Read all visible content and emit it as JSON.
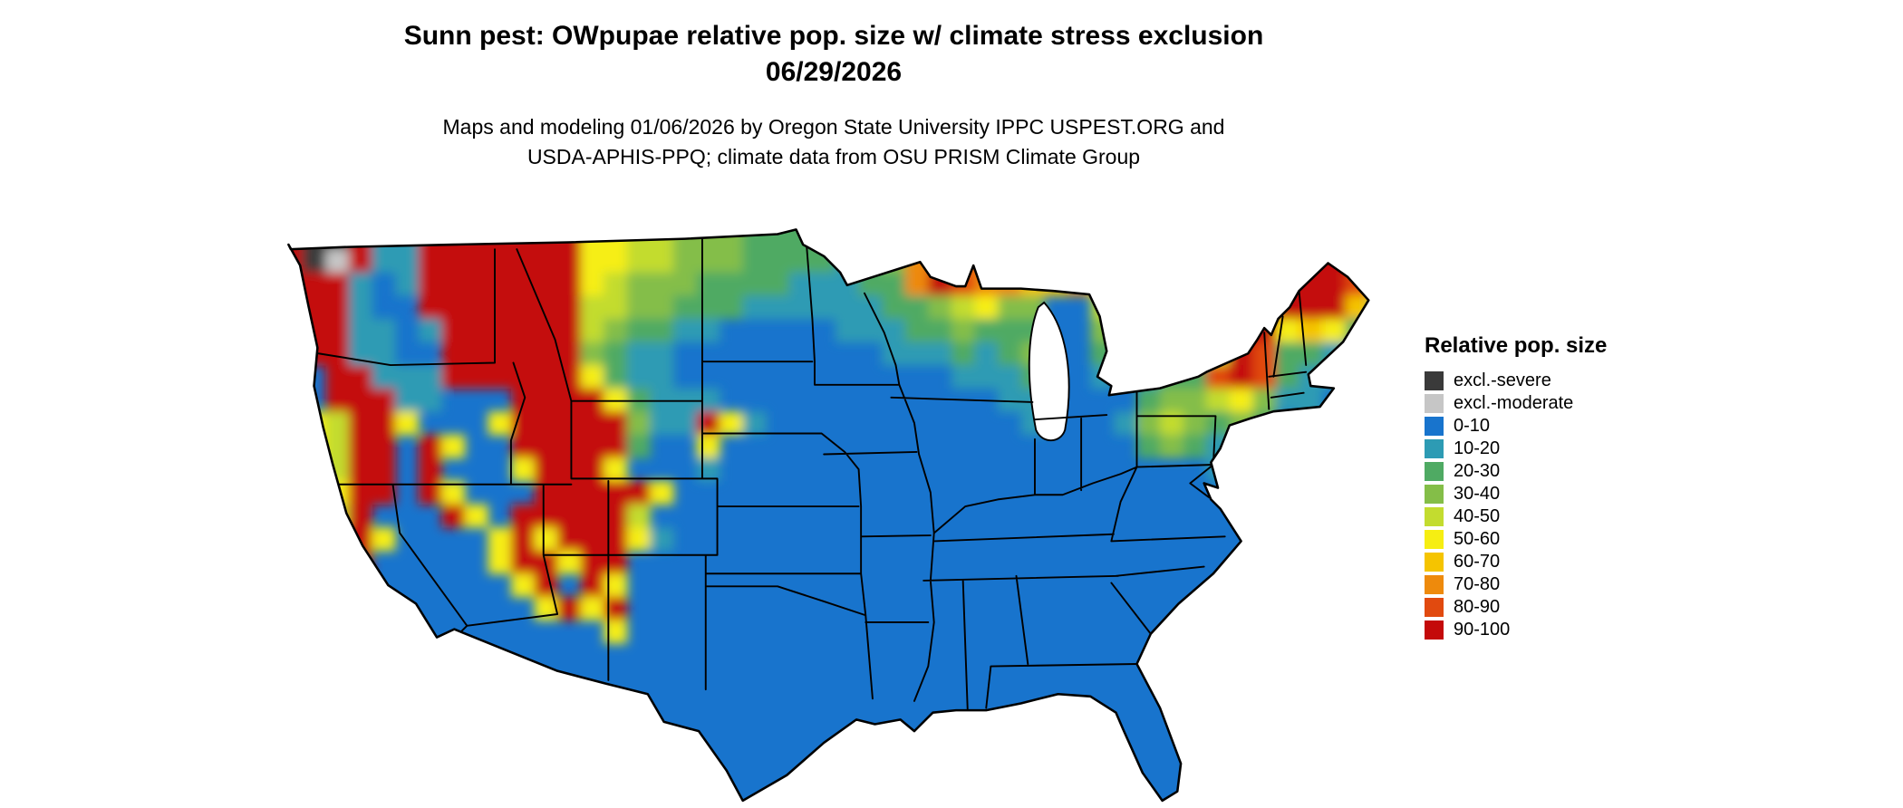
{
  "title": {
    "line1": "Sunn pest: OWpupae relative pop. size w/ climate stress exclusion",
    "line2": "06/29/2026"
  },
  "attribution": {
    "line1": "Maps and modeling 01/06/2026 by Oregon State University IPPC USPEST.ORG and",
    "line2": "USDA-APHIS-PPQ; climate data from OSU PRISM Climate Group"
  },
  "legend": {
    "title": "Relative pop. size",
    "items": [
      {
        "label": "excl.-severe",
        "color": "#3A3A3A",
        "char": "s"
      },
      {
        "label": "excl.-moderate",
        "color": "#C6C6C6",
        "char": "m"
      },
      {
        "label": "0-10",
        "color": "#1874CD",
        "char": "0"
      },
      {
        "label": "10-20",
        "color": "#2D9BB4",
        "char": "1"
      },
      {
        "label": "20-30",
        "color": "#4FAA63",
        "char": "2"
      },
      {
        "label": "30-40",
        "color": "#84BE48",
        "char": "3"
      },
      {
        "label": "40-50",
        "color": "#C3DC2F",
        "char": "4"
      },
      {
        "label": "50-60",
        "color": "#F6EE12",
        "char": "5"
      },
      {
        "label": "60-70",
        "color": "#F5C400",
        "char": "6"
      },
      {
        "label": "70-80",
        "color": "#EE8A0C",
        "char": "7"
      },
      {
        "label": "80-90",
        "color": "#E14A0F",
        "char": "8"
      },
      {
        "label": "90-100",
        "color": "#C40A0A",
        "char": "9"
      }
    ]
  },
  "map": {
    "area": "Contiguous United States",
    "regions": [
      {
        "area": "Cascades, Sierra Nevada, northern and central Rockies (WA/OR/ID/MT/WY/UT/CO)",
        "class": "80-100 (high relative pop. size)"
      },
      {
        "area": "Eastern, southern and Great Plains lowlands",
        "class": "0-10 (low)"
      },
      {
        "area": "Northern Plains into western Great Lakes",
        "class": "20-60 transition band"
      },
      {
        "area": "Lake Superior shore, Minnesota arrowhead, upper Michigan",
        "class": "60-90"
      },
      {
        "area": "Northern Maine, Adirondacks, northern New England",
        "class": "70-100"
      },
      {
        "area": "Puget Sound vicinity",
        "class": "excluded (severe/moderate climate stress)"
      },
      {
        "area": "California Central Valley, Black Hills, Mogollon Rim, Sangre de Cristo",
        "class": "40-100 pockets"
      }
    ],
    "raster": {
      "cols": 48,
      "rows": 26,
      "cell": 20,
      "rows_encoded": [
        "9ss911999999955443332222123788776000000003899998",
        "9ss911999999955443332222123788776000000003899998",
        "9sm911999999955443332222123788763000000003899998",
        "999101999999954333222211122798776676000015999986",
        "999100999999944332221111112234533..4200018999963",
        "999110199999943221100000111223222..3210029956520",
        "999110099999932110000000001112123..2100149822110",
        "909911199999952110000000000001112..1012289821100",
        "909991100099995211100000000000011..0023345311000",
        "954995000599999311951000000000001..0134323201000",
        "954990950099999200500000000000000..0023212100000",
        "944990900059995000100000000000000000000011000000",
        "945990950009999950000000000000000000000000000000",
        "954900095099999400000000000000000000000000000000",
        "599950000595999510000000000000000000000000000000",
        "059900000599599000000000000000000000000000000000",
        "095000000059095000000000000000000000000000000000",
        "009000000005959000000000000000000000000000000000",
        "050000000000005000000000000000000000000000000000",
        "000000000000000000000000000000000000000000000000",
        "000000000000000000000000000000000000000000000000",
        "000000000000000000000000000000000000000000000000",
        "000000000000000000000000000000000000000000000000",
        "000000000000000000000000000000000000000000000000",
        "000000000000000000000000000000000000000000000000",
        "000000000000000000000000000000000000000000000000"
      ]
    }
  }
}
